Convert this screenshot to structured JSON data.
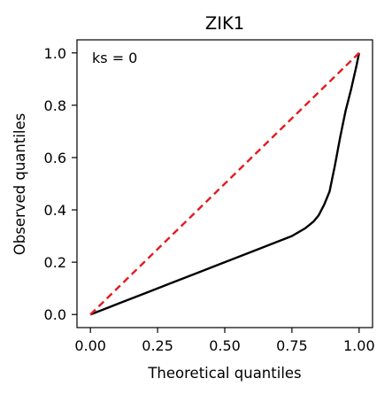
{
  "chart_data": {
    "type": "line",
    "title": "ZIK1",
    "xlabel": "Theoretical quantiles",
    "ylabel": "Observed quantiles",
    "annotation": "ks = 0",
    "xlim": [
      -0.05,
      1.05
    ],
    "ylim": [
      -0.05,
      1.05
    ],
    "xticks": [
      0.0,
      0.25,
      0.5,
      0.75,
      1.0
    ],
    "xtick_labels": [
      "0.00",
      "0.25",
      "0.50",
      "0.75",
      "1.00"
    ],
    "yticks": [
      0.0,
      0.2,
      0.4,
      0.6,
      0.8,
      1.0
    ],
    "ytick_labels": [
      "0.0",
      "0.2",
      "0.4",
      "0.6",
      "0.8",
      "1.0"
    ],
    "grid": false,
    "series": [
      {
        "color": "#000000",
        "style": "solid",
        "x": [
          0.0,
          0.1,
          0.2,
          0.3,
          0.4,
          0.5,
          0.6,
          0.7,
          0.75,
          0.8,
          0.83,
          0.85,
          0.87,
          0.89,
          0.9,
          0.91,
          0.93,
          0.95,
          0.97,
          0.99,
          1.0
        ],
        "y": [
          0.0,
          0.04,
          0.08,
          0.12,
          0.16,
          0.2,
          0.24,
          0.28,
          0.3,
          0.33,
          0.355,
          0.38,
          0.42,
          0.47,
          0.52,
          0.57,
          0.68,
          0.78,
          0.86,
          0.95,
          1.0
        ]
      },
      {
        "color": "#e41a1c",
        "style": "dashed",
        "x": [
          0.0,
          1.0
        ],
        "y": [
          0.0,
          1.0
        ]
      }
    ]
  }
}
